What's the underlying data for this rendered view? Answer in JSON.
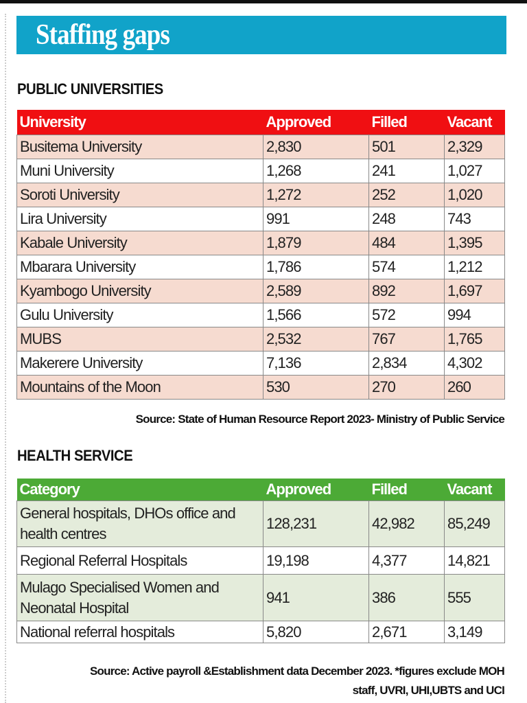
{
  "title": "Staffing gaps",
  "colors": {
    "banner": "#11a3c9",
    "universities_header": "#f00f12",
    "universities_alt_row": "#f6dbd0",
    "health_header": "#4caa36",
    "health_alt_row": "#e4ecdb"
  },
  "universities": {
    "heading": "PUBLIC UNIVERSITIES",
    "columns": [
      "University",
      "Approved",
      "Filled",
      "Vacant"
    ],
    "rows": [
      [
        "Busitema University",
        "2,830",
        "501",
        "2,329"
      ],
      [
        "Muni University",
        "1,268",
        "241",
        "1,027"
      ],
      [
        "Soroti University",
        "1,272",
        "252",
        "1,020"
      ],
      [
        "Lira University",
        "991",
        "248",
        "743"
      ],
      [
        "Kabale University",
        "1,879",
        "484",
        "1,395"
      ],
      [
        "Mbarara University",
        "1,786",
        "574",
        "1,212"
      ],
      [
        "Kyambogo University",
        "2,589",
        "892",
        "1,697"
      ],
      [
        "Gulu University",
        "1,566",
        "572",
        "994"
      ],
      [
        "MUBS",
        "2,532",
        "767",
        "1,765"
      ],
      [
        "Makerere University",
        "7,136",
        "2,834",
        "4,302"
      ],
      [
        "Mountains of the Moon",
        "530",
        "270",
        "260"
      ]
    ],
    "source": "Source: State of Human Resource Report 2023- Ministry of Public Service"
  },
  "health": {
    "heading": "HEALTH SERVICE",
    "columns": [
      "Category",
      "Approved",
      "Filled",
      "Vacant"
    ],
    "rows": [
      [
        "General hospitals, DHOs office and health centres",
        "128,231",
        "42,982",
        "85,249"
      ],
      [
        "Regional Referral Hospitals",
        "19,198",
        "4,377",
        "14,821"
      ],
      [
        "Mulago Specialised Women and Neonatal Hospital",
        "941",
        "386",
        "555"
      ],
      [
        "National referral hospitals",
        "5,820",
        "2,671",
        "3,149"
      ]
    ],
    "source_line1": "Source: Active payroll &Establishment data December 2023. *figures exclude MOH",
    "source_line2": "staff, UVRI, UHI,UBTS and UCI"
  }
}
